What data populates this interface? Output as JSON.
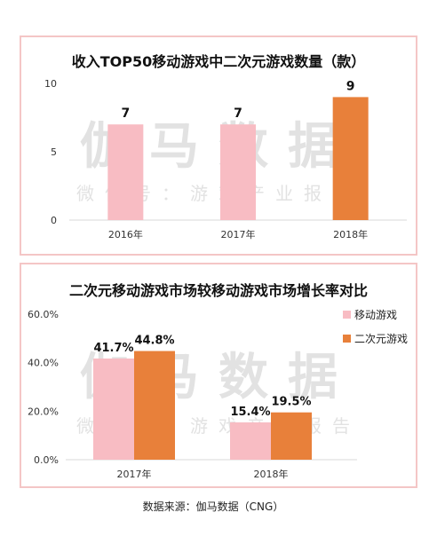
{
  "colors": {
    "pink": "#f8bcc3",
    "orange": "#e8803a",
    "border": "#f4c6c6"
  },
  "watermark": {
    "main": "伽马数据",
    "sub": "微信号：游戏产业报告"
  },
  "source_note": "数据来源：伽马数据（CNG）",
  "chart_data": [
    {
      "type": "bar",
      "title": "收入TOP50移动游戏中二次元游戏数量（款）",
      "categories": [
        "2016年",
        "2017年",
        "2018年"
      ],
      "values": [
        7,
        7,
        9
      ],
      "value_labels": [
        "7",
        "7",
        "9"
      ],
      "bar_colors": [
        "pink",
        "pink",
        "orange"
      ],
      "ylim": [
        0,
        10
      ],
      "yticks": [
        0,
        5,
        10
      ],
      "ytick_labels": [
        "0",
        "5",
        "10"
      ],
      "grid": false
    },
    {
      "type": "bar",
      "title": "二次元移动游戏市场较移动游戏市场增长率对比",
      "categories": [
        "2017年",
        "2018年"
      ],
      "series": [
        {
          "name": "移动游戏",
          "values": [
            41.7,
            15.4
          ],
          "value_labels": [
            "41.7%",
            "15.4%"
          ],
          "color": "pink"
        },
        {
          "name": "二次元游戏",
          "values": [
            44.8,
            19.5
          ],
          "value_labels": [
            "44.8%",
            "19.5%"
          ],
          "color": "orange"
        }
      ],
      "ylim": [
        0,
        60
      ],
      "yticks": [
        0,
        20,
        40,
        60
      ],
      "ytick_labels": [
        "0.0%",
        "20.0%",
        "40.0%",
        "60.0%"
      ],
      "legend": "right",
      "grid": false
    }
  ]
}
